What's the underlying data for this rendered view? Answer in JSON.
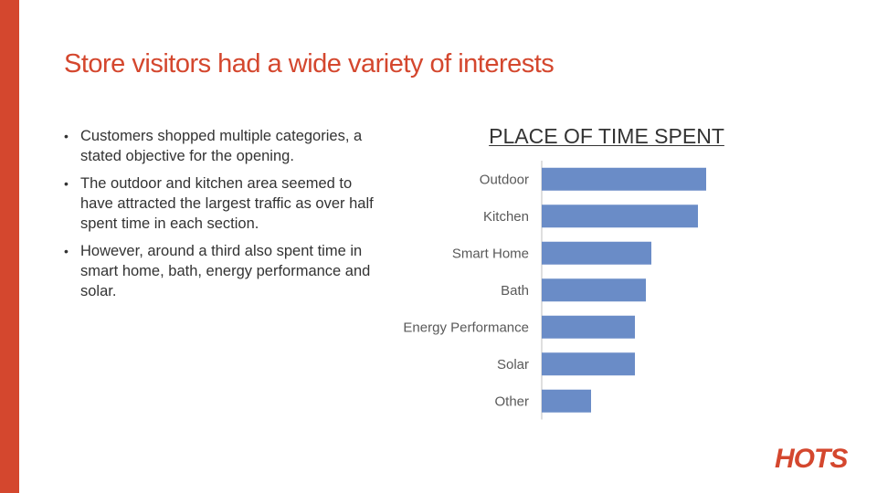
{
  "slide": {
    "title": "Store visitors had a wide variety of interests",
    "bullets": [
      "Customers shopped multiple categories, a stated objective for the opening.",
      "The outdoor and kitchen area seemed to have attracted the largest traffic as over half spent time in each section.",
      "However, around a third also spent time in smart home, bath, energy performance and solar."
    ],
    "bullet_glyph": "•",
    "logo_text": "HOTS"
  },
  "colors": {
    "accent": "#d4472e",
    "bar": "#6a8cc7",
    "label": "#595959",
    "axis": "#bfbfbf"
  },
  "chart_data": {
    "type": "bar",
    "orientation": "horizontal",
    "title": "PLACE OF TIME SPENT",
    "categories": [
      "Outdoor",
      "Kitchen",
      "Smart Home",
      "Bath",
      "Energy Performance",
      "Solar",
      "Other"
    ],
    "values": [
      0.6,
      0.57,
      0.4,
      0.38,
      0.34,
      0.34,
      0.18
    ],
    "xlim": [
      0,
      1
    ],
    "grid": false,
    "legend": "none"
  }
}
